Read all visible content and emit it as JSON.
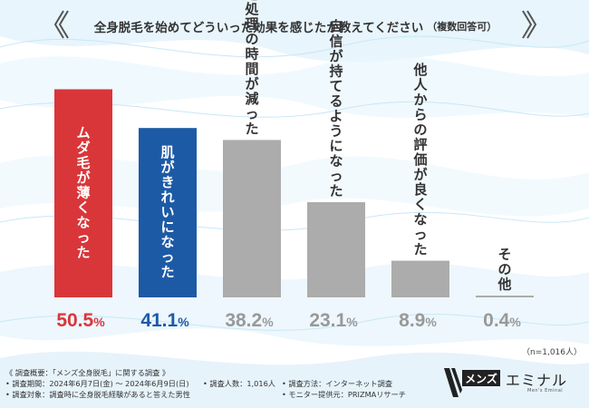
{
  "title": {
    "main": "全身脱毛を始めてどういった効果を感じたか教えてください",
    "sub": "（複数回答可）"
  },
  "chart_data": {
    "type": "bar",
    "title": "全身脱毛を始めてどういった効果を感じたか教えてください（複数回答可）",
    "categories": [
      "ムダ毛が薄くなった",
      "肌がきれいになった",
      "ムダ毛処理の時間が減った",
      "自信が持てるようになった",
      "他人からの評価が良くなった",
      "その他"
    ],
    "values": [
      50.5,
      41.1,
      38.2,
      23.1,
      8.9,
      0.4
    ],
    "value_suffix": "%",
    "ylim": [
      0,
      55
    ],
    "colors": [
      "#d9363a",
      "#1d5aa6",
      "#acacac",
      "#acacac",
      "#acacac",
      "#acacac"
    ],
    "label_colors": [
      "#d9363a",
      "#1d5aa6",
      "#999999",
      "#999999",
      "#999999",
      "#999999"
    ],
    "n_note": "（n=1,016人）"
  },
  "survey": {
    "heading": "《 調査概要：「メンズ全身脱毛」に関する調査 》",
    "period": "• 調査期間：2024年6月7日(金) ～ 2024年6月9日(日)",
    "count": "• 調査人数：1,016人",
    "method": "• 調査方法：インターネット調査",
    "target": "• 調査対象：調査時に全身脱毛経験があると答えた男性",
    "provider": "• モニター提供元：PRIZMAリサーチ"
  },
  "logo": {
    "box": "メンズ",
    "text": "エミナル",
    "tagline": "Men's Eminal"
  }
}
